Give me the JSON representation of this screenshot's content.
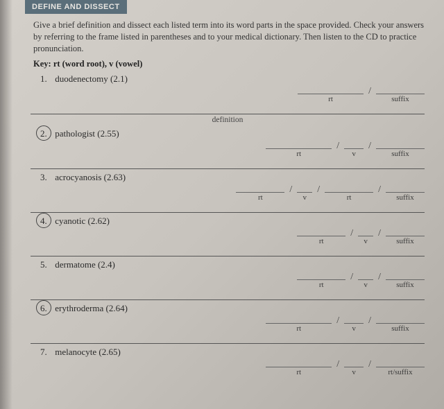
{
  "header": {
    "tab": "DEFINE AND DISSECT"
  },
  "instructions": "Give a brief definition and dissect each listed term into its word parts in the space provided. Check your answers by referring to the frame listed in parentheses and to your medical dictionary. Then listen to the CD to practice pronunciation.",
  "key": {
    "prefix": "Key:",
    "text": "rt (word root), v (vowel)"
  },
  "labels": {
    "rt": "rt",
    "v": "v",
    "suffix": "suffix",
    "rtsuffix": "rt/suffix",
    "definition": "definition"
  },
  "terms": [
    {
      "num": "1.",
      "text": "duodenectomy (2.1)",
      "circled": false
    },
    {
      "num": "2.",
      "text": "pathologist (2.55)",
      "circled": true
    },
    {
      "num": "3.",
      "text": "acrocyanosis (2.63)",
      "circled": false
    },
    {
      "num": "4.",
      "text": "cyanotic (2.62)",
      "circled": true
    },
    {
      "num": "5.",
      "text": "dermatome (2.4)",
      "circled": false
    },
    {
      "num": "6.",
      "text": "erythroderma (2.64)",
      "circled": true
    },
    {
      "num": "7.",
      "text": "melanocyte (2.65)",
      "circled": false
    }
  ]
}
